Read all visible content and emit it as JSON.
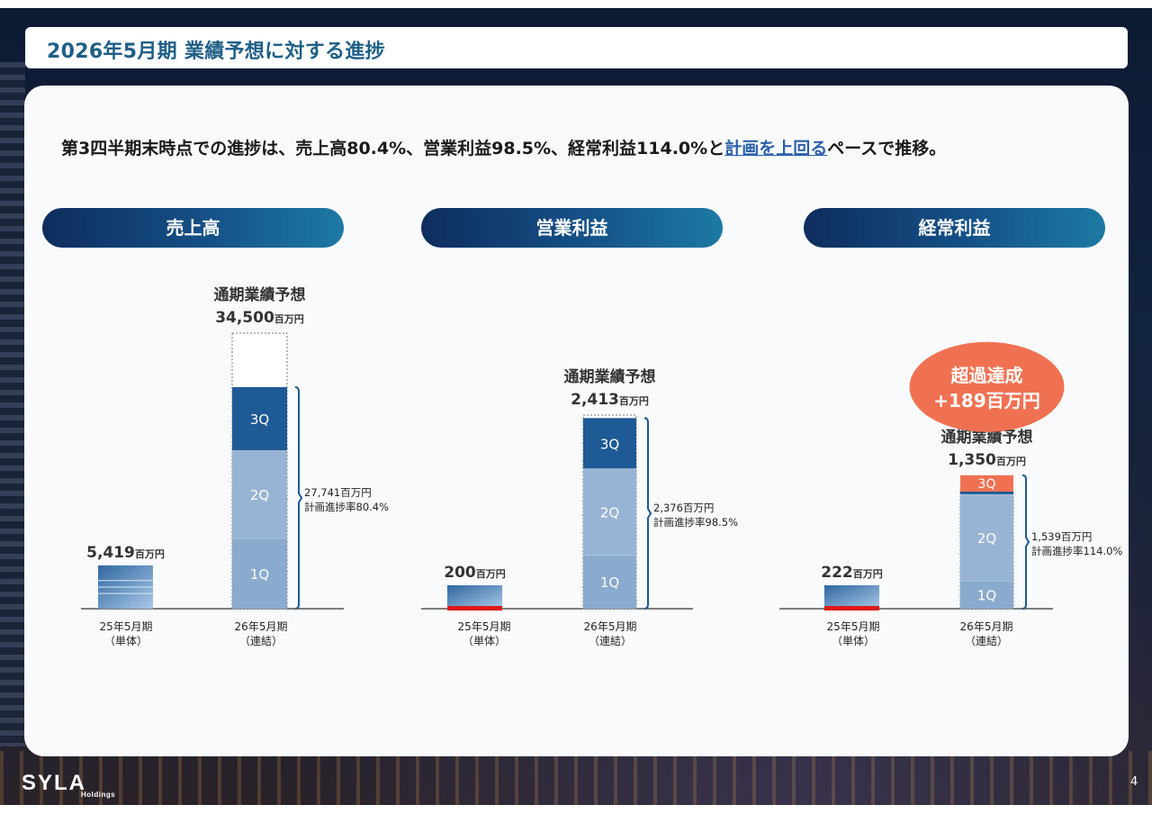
{
  "title": "2026年5月期 業績予想に対する進捗",
  "headline": {
    "prefix": "第3四半期末時点での進捗は、売上高80.4%、営業利益98.5%、経常利益114.0%と",
    "highlight": "計画を上回る",
    "suffix": "ペースで推移。"
  },
  "chart_data": [
    {
      "type": "bar",
      "title": "売上高",
      "unit": "百万円",
      "categories": [
        "25年5月期（単体）",
        "26年5月期（連結）"
      ],
      "prior": {
        "value": 5419,
        "label": "5,419"
      },
      "forecast": {
        "label": "通期業績予想",
        "value": 34500,
        "value_label": "34,500"
      },
      "quarters": [
        {
          "name": "1Q",
          "value": 8810
        },
        {
          "name": "2Q",
          "value": 11021
        },
        {
          "name": "3Q",
          "value": 7910
        }
      ],
      "cumulative": {
        "value": 27741,
        "label": "27,741百万円",
        "rate_label": "計画進捗率80.4%"
      }
    },
    {
      "type": "bar",
      "title": "営業利益",
      "unit": "百万円",
      "categories": [
        "25年5月期（単体）",
        "26年5月期（連結）"
      ],
      "prior": {
        "value": 200,
        "label": "200"
      },
      "forecast": {
        "label": "通期業績予想",
        "value": 2413,
        "value_label": "2,413"
      },
      "quarters": [
        {
          "name": "1Q",
          "value": 668
        },
        {
          "name": "2Q",
          "value": 1080
        },
        {
          "name": "3Q",
          "value": 628
        }
      ],
      "cumulative": {
        "value": 2376,
        "label": "2,376百万円",
        "rate_label": "計画進捗率98.5%"
      }
    },
    {
      "type": "bar",
      "title": "経常利益",
      "unit": "百万円",
      "categories": [
        "25年5月期（単体）",
        "26年5月期（連結）"
      ],
      "prior": {
        "value": 222,
        "label": "222"
      },
      "forecast": {
        "label": "通期業績予想",
        "value": 1350,
        "value_label": "1,350"
      },
      "quarters": [
        {
          "name": "1Q",
          "value": 320
        },
        {
          "name": "2Q",
          "value": 1000
        },
        {
          "name": "3Q",
          "value": 219
        }
      ],
      "cumulative": {
        "value": 1539,
        "label": "1,539百万円",
        "rate_label": "計画進捗率114.0%"
      },
      "excess_badge": {
        "line1": "超過達成",
        "line2": "+189百万円"
      }
    }
  ],
  "x_category_top": [
    "25年5月期",
    "26年5月期"
  ],
  "x_category_bottom": [
    "（単体）",
    "（連結）"
  ],
  "colors": {
    "q1": "#8aaace",
    "q2": "#98b4d4",
    "q3": "#1e5a95",
    "excess": "#f07152",
    "badge": "#f07152",
    "negative": "#e01818",
    "prior_bar": "#3f79ad",
    "title_text": "#1f5f86"
  },
  "footer": {
    "logo": "SYLA",
    "logo_sub": "Holdings",
    "page": "4"
  }
}
